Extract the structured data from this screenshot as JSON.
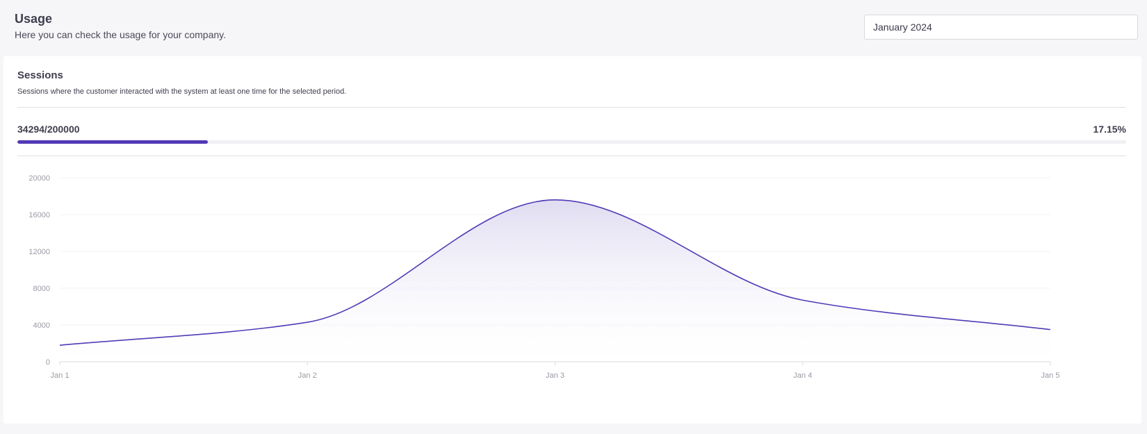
{
  "header": {
    "title": "Usage",
    "subtitle": "Here you can check the usage for your company."
  },
  "period_select": {
    "value": "January 2024"
  },
  "sessions": {
    "title": "Sessions",
    "description": "Sessions where the customer interacted with the system at least one time for the selected period.",
    "usage_text": "34294/200000",
    "used": 34294,
    "limit": 200000,
    "percent_text": "17.15%",
    "percent": 17.15
  },
  "colors": {
    "accent": "#5239b6",
    "area_top": "#e0dcf1",
    "gridline": "#f2f2f5",
    "axis": "#d9d9e0"
  },
  "chart_data": {
    "type": "area",
    "x": [
      "Jan 1",
      "Jan 2",
      "Jan 3",
      "Jan 4",
      "Jan 5"
    ],
    "series": [
      {
        "values": [
          1800,
          4300,
          17600,
          6700,
          3500
        ]
      }
    ],
    "y_ticks": [
      0,
      4000,
      8000,
      12000,
      16000,
      20000
    ],
    "ylim": [
      0,
      20000
    ],
    "grid": true,
    "smooth": true
  }
}
